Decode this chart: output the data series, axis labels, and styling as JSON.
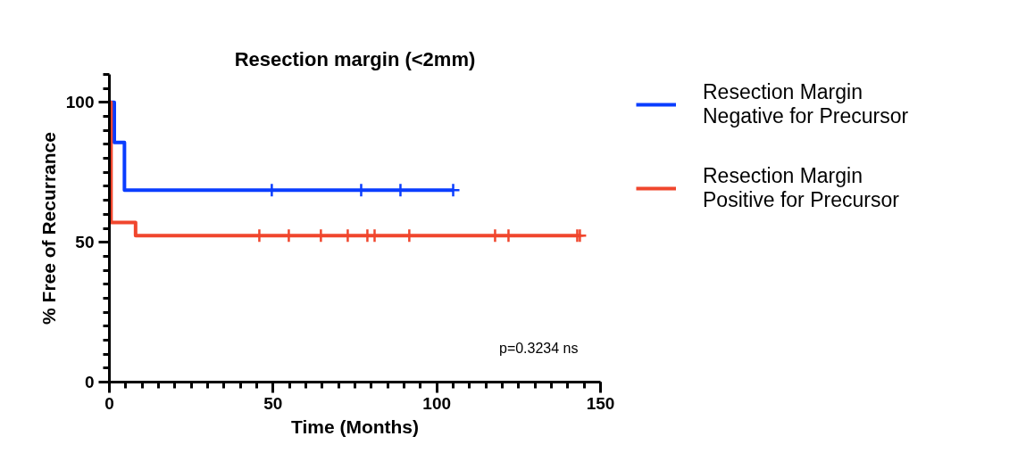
{
  "chart_data": {
    "type": "step",
    "title": "Resection margin (<2mm)",
    "xlabel": "Time (Months)",
    "ylabel": "% Free of Recurrance",
    "xlim": [
      0,
      150
    ],
    "xticks": [
      0,
      50,
      100,
      150
    ],
    "ylim": [
      0,
      110
    ],
    "yticks": [
      0,
      50,
      100
    ],
    "grid": false,
    "legend": "right",
    "annotations": [
      "p=0.3234 ns"
    ],
    "series": [
      {
        "name": "Resection Margin Negative for Precursor",
        "color": "#0a3dff",
        "x": [
          0,
          1.5,
          4.6,
          105
        ],
        "values": [
          100,
          85.7,
          68.6,
          68.6
        ]
      },
      {
        "name": "Resection Margin Positive for Precursor",
        "color": "#f0462d",
        "x": [
          0,
          0.5,
          8,
          144
        ],
        "values": [
          100,
          57.1,
          52.4,
          52.4
        ]
      },
      {
        "color": "#0a3dff",
        "type": "scatter",
        "marker": "cross",
        "x": [
          49.6,
          76.9,
          88.9,
          105
        ],
        "values": [
          68.6,
          68.6,
          68.6,
          68.6
        ]
      },
      {
        "color": "#f0462d",
        "type": "scatter",
        "marker": "cross",
        "x": [
          45.8,
          54.8,
          64.6,
          72.8,
          78.8,
          81,
          91.6,
          117.8,
          121.9,
          142.9,
          143.7
        ],
        "values": [
          52.4,
          52.4,
          52.4,
          52.4,
          52.4,
          52.4,
          52.4,
          52.4,
          52.4,
          52.4,
          52.4
        ]
      }
    ]
  }
}
